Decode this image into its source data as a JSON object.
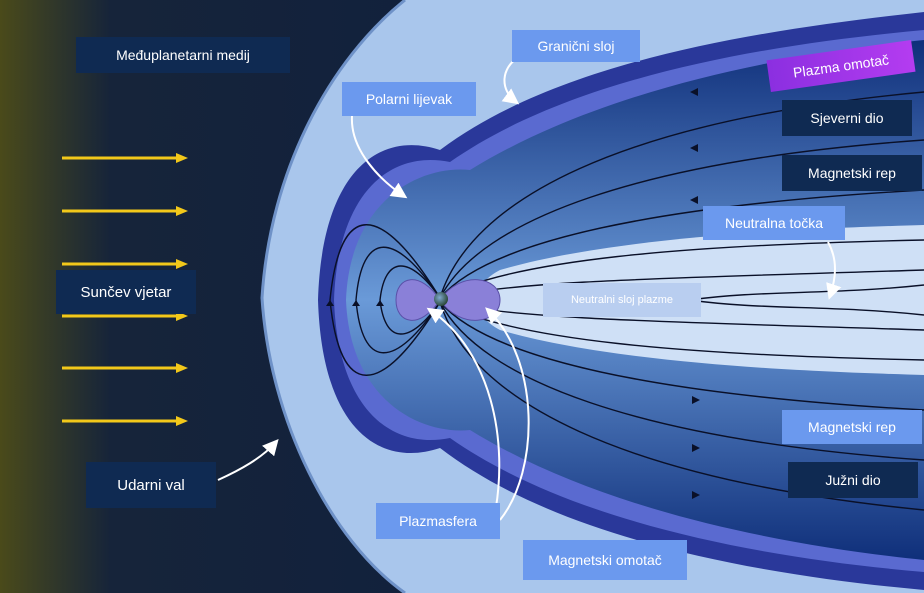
{
  "labels": {
    "medij": "Međuplanetarni medij",
    "suncev_vjetar": "Sunčev vjetar",
    "udarni_val": "Udarni val",
    "polarni_lijevak": "Polarni lijevak",
    "granicni_sloj": "Granični sloj",
    "plazma_omotac": "Plazma omotač",
    "sjeverni_dio": "Sjeverni dio",
    "magnetski_rep_gore": "Magnetski rep",
    "neutralna_tocka": "Neutralna točka",
    "neutralni_sloj": "Neutralni sloj plazme",
    "magnetski_rep_dolje": "Magnetski rep",
    "juzni_dio": "Južni dio",
    "plazmasfera": "Plazmasfera",
    "magnetski_omotac": "Magnetski omotač"
  },
  "colors": {
    "solar_wind_arrow": "#f2c81a",
    "shock_region": "#9bbde8",
    "magnetopause": "#2a3a9a",
    "plasmasphere": "#8a80d8",
    "deep_space": "#0a1a38"
  }
}
